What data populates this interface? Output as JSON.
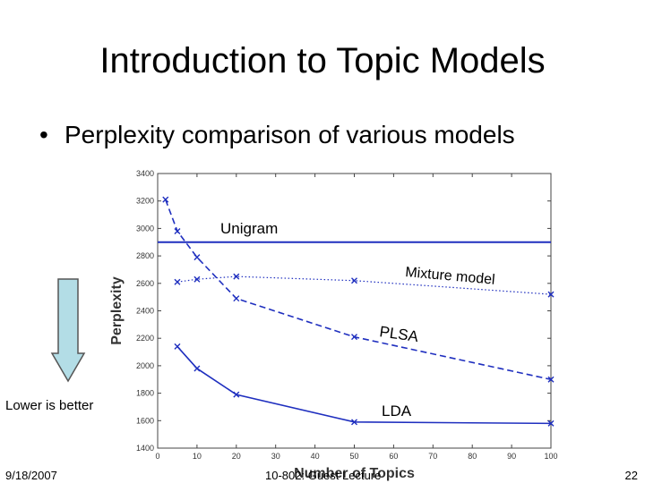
{
  "slide": {
    "title": "Introduction to Topic Models",
    "bullet_symbol": "•",
    "bullet": "Perplexity comparison of various models",
    "side_note": "Lower is better",
    "footer_date": "9/18/2007",
    "footer_center": "10-802: Guest Lecture",
    "page_number": "22",
    "arrow_color": "#b3dde6"
  },
  "chart_data": {
    "type": "line",
    "title": "",
    "xlabel": "Number of Topics",
    "ylabel": "Perplexity",
    "xlim": [
      0,
      100
    ],
    "ylim": [
      1400,
      3400
    ],
    "xticks": [
      0,
      10,
      20,
      30,
      40,
      50,
      60,
      70,
      80,
      90,
      100
    ],
    "yticks": [
      1400,
      1600,
      1800,
      2000,
      2200,
      2400,
      2600,
      2800,
      3000,
      3200,
      3400
    ],
    "grid": false,
    "series": [
      {
        "name": "Unigram",
        "style": "solid",
        "markers": false,
        "color": "#1f2fbf",
        "x": [
          0,
          100
        ],
        "y": [
          2900,
          2900
        ]
      },
      {
        "name": "Mixture model",
        "style": "dotted",
        "markers": true,
        "color": "#1f2fbf",
        "x": [
          5,
          10,
          20,
          50,
          100
        ],
        "y": [
          2610,
          2630,
          2650,
          2620,
          2520
        ]
      },
      {
        "name": "PLSA",
        "style": "dashed",
        "markers": true,
        "color": "#1f2fbf",
        "x": [
          2,
          5,
          10,
          20,
          50,
          100
        ],
        "y": [
          3210,
          2980,
          2790,
          2490,
          2210,
          1900
        ]
      },
      {
        "name": "LDA",
        "style": "solid",
        "markers": true,
        "color": "#1f2fbf",
        "x": [
          5,
          10,
          20,
          50,
          100
        ],
        "y": [
          2140,
          1980,
          1790,
          1590,
          1580
        ]
      }
    ]
  }
}
